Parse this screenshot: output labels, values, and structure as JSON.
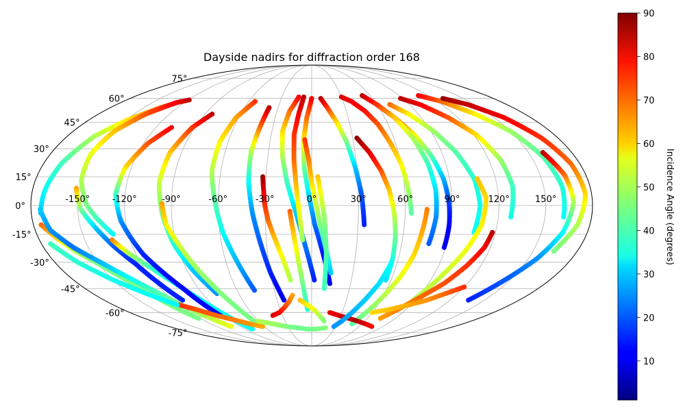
{
  "chart_data": {
    "type": "scatter",
    "projection": "mollweide",
    "title": "Dayside nadirs for diffraction order 168",
    "xlabel": "",
    "ylabel": "",
    "xlim": [
      -180,
      180
    ],
    "ylim": [
      -90,
      90
    ],
    "grid": true,
    "x_ticks": [
      -150,
      -120,
      -90,
      -60,
      -30,
      0,
      30,
      60,
      90,
      120,
      150
    ],
    "x_tick_labels": [
      "-150°",
      "-120°",
      "-90°",
      "-60°",
      "-30°",
      "0°",
      "30°",
      "60°",
      "90°",
      "120°",
      "150°"
    ],
    "y_ticks": [
      -75,
      -60,
      -45,
      -30,
      -15,
      0,
      15,
      30,
      45,
      60,
      75
    ],
    "y_tick_labels": [
      "-75°",
      "-60°",
      "-45°",
      "-30°",
      "-15°",
      "0°",
      "15°",
      "30°",
      "45°",
      "60°",
      "75°"
    ],
    "colorbar": {
      "label": "Incidence Angle (degrees)",
      "colormap": "jet",
      "range": [
        1,
        90
      ],
      "ticks": [
        10,
        20,
        30,
        40,
        50,
        60,
        70,
        80,
        90
      ],
      "tick_labels": [
        "10",
        "20",
        "30",
        "40",
        "50",
        "60",
        "70",
        "80",
        "90"
      ]
    },
    "tracks": [
      {
        "lon": [
          -175,
          -168,
          -160,
          -150,
          -140,
          -132,
          -122
        ],
        "lat": [
          -10,
          -17,
          -24,
          -31,
          -40,
          -50,
          -64
        ],
        "inc": [
          70,
          60,
          50,
          45,
          45,
          45,
          45
        ]
      },
      {
        "lon": [
          -125,
          -135,
          -148,
          -160,
          -168,
          -172,
          -174
        ],
        "lat": [
          58,
          54,
          47,
          37,
          22,
          8,
          -4
        ],
        "inc": [
          80,
          70,
          60,
          50,
          40,
          35,
          30
        ]
      },
      {
        "lon": [
          -174,
          -170,
          -160,
          -148,
          -136,
          -124,
          -114,
          -102
        ],
        "lat": [
          -2,
          -13,
          -22,
          -30,
          -39,
          -49,
          -59,
          -70
        ],
        "inc": [
          30,
          25,
          22,
          28,
          35,
          42,
          48,
          55
        ]
      },
      {
        "lon": [
          -119,
          -128,
          -140,
          -149,
          -152,
          -150,
          -144,
          -138,
          -130
        ],
        "lat": [
          59,
          57,
          50,
          40,
          27,
          13,
          0,
          -7,
          -15
        ],
        "inc": [
          85,
          80,
          72,
          62,
          55,
          50,
          45,
          40,
          35
        ]
      },
      {
        "lon": [
          -152,
          -148,
          -140,
          -132,
          -124,
          -118,
          -112
        ],
        "lat": [
          9,
          -2,
          -12,
          -22,
          -31,
          -41,
          -52
        ],
        "inc": [
          65,
          45,
          30,
          20,
          15,
          15,
          15
        ]
      },
      {
        "lon": [
          -132,
          -125,
          -115,
          -105,
          -96,
          -88,
          -80
        ],
        "lat": [
          -18,
          -25,
          -33,
          -42,
          -52,
          -62,
          -72
        ],
        "inc": [
          68,
          50,
          40,
          35,
          35,
          35,
          35
        ]
      },
      {
        "lon": [
          -108,
          -117,
          -124,
          -126,
          -123,
          -115,
          -102,
          -94
        ],
        "lat": [
          42,
          33,
          20,
          6,
          -8,
          -26,
          -45,
          -62
        ],
        "inc": [
          80,
          72,
          60,
          40,
          25,
          15,
          12,
          12
        ]
      },
      {
        "lon": [
          -84,
          -92,
          -98,
          -99,
          -96,
          -92,
          -86,
          -78
        ],
        "lat": [
          50,
          42,
          28,
          12,
          -4,
          -20,
          -34,
          -48
        ],
        "inc": [
          85,
          75,
          62,
          52,
          45,
          38,
          30,
          25
        ]
      },
      {
        "lon": [
          -96,
          -94,
          -88,
          -82,
          -76,
          -70,
          -64
        ],
        "lat": [
          1,
          -10,
          -22,
          -34,
          -45,
          -56,
          -68
        ],
        "inc": [
          65,
          58,
          52,
          48,
          46,
          45,
          45
        ]
      },
      {
        "lon": [
          -54,
          -62,
          -66,
          -66,
          -62,
          -58,
          -52,
          -46
        ],
        "lat": [
          58,
          48,
          34,
          18,
          2,
          -14,
          -30,
          -46
        ],
        "inc": [
          75,
          65,
          58,
          50,
          42,
          35,
          28,
          20
        ]
      },
      {
        "lon": [
          -38,
          -40,
          -42,
          -41,
          -38,
          -34,
          -30,
          -24
        ],
        "lat": [
          54,
          42,
          28,
          12,
          -4,
          -20,
          -36,
          -52
        ],
        "inc": [
          85,
          70,
          50,
          35,
          25,
          20,
          15,
          10
        ]
      },
      {
        "lon": [
          -32,
          -31,
          -30,
          -28,
          -24,
          -20,
          -16
        ],
        "lat": [
          15,
          8,
          0,
          -8,
          -18,
          -28,
          -40
        ],
        "inc": [
          88,
          82,
          75,
          70,
          62,
          55,
          50
        ]
      },
      {
        "lon": [
          -13,
          -19,
          -22,
          -20,
          -16,
          -10,
          -4,
          2
        ],
        "lat": [
          61,
          52,
          40,
          26,
          12,
          -4,
          -22,
          -40
        ],
        "inc": [
          80,
          70,
          60,
          50,
          40,
          30,
          22,
          15
        ]
      },
      {
        "lon": [
          -8,
          -11,
          -13,
          -12,
          -10,
          -8,
          -6
        ],
        "lat": [
          61,
          50,
          38,
          24,
          10,
          -4,
          -18
        ],
        "inc": [
          85,
          80,
          75,
          70,
          62,
          55,
          48
        ]
      },
      {
        "lon": [
          0,
          -4,
          -6,
          -5,
          -2,
          2,
          8,
          14
        ],
        "lat": [
          60,
          48,
          34,
          20,
          6,
          -10,
          -26,
          -42
        ],
        "inc": [
          80,
          70,
          58,
          45,
          32,
          22,
          14,
          10
        ]
      },
      {
        "lon": [
          -5,
          -2,
          0,
          3,
          6,
          10,
          14
        ],
        "lat": [
          35,
          24,
          12,
          0,
          -12,
          -24,
          -36
        ],
        "inc": [
          75,
          68,
          60,
          52,
          44,
          36,
          30
        ]
      },
      {
        "lon": [
          -14,
          -12,
          -10,
          -8,
          -6,
          -4
        ],
        "lat": [
          -3,
          -14,
          -25,
          -36,
          -47,
          -58
        ],
        "inc": [
          70,
          62,
          55,
          48,
          42,
          38
        ]
      },
      {
        "lon": [
          4,
          6,
          8,
          9,
          10,
          10,
          10
        ],
        "lat": [
          15,
          5,
          -5,
          -15,
          -25,
          -35,
          -45
        ],
        "inc": [
          62,
          55,
          48,
          44,
          42,
          40,
          40
        ]
      },
      {
        "lon": [
          9,
          14,
          20,
          25,
          29,
          32,
          34
        ],
        "lat": [
          60,
          54,
          45,
          34,
          20,
          6,
          -10
        ],
        "inc": [
          85,
          75,
          60,
          45,
          30,
          20,
          15
        ]
      },
      {
        "lon": [
          30,
          38,
          46,
          52,
          56,
          60,
          62,
          64
        ],
        "lat": [
          61,
          58,
          52,
          44,
          34,
          22,
          10,
          -4
        ],
        "inc": [
          82,
          80,
          78,
          72,
          65,
          58,
          50,
          42
        ]
      },
      {
        "lon": [
          60,
          68,
          76,
          82,
          86,
          88,
          89,
          89
        ],
        "lat": [
          56,
          48,
          38,
          26,
          14,
          2,
          -10,
          -22
        ],
        "inc": [
          82,
          72,
          58,
          42,
          28,
          18,
          12,
          10
        ]
      },
      {
        "lon": [
          33,
          40,
          46,
          50,
          53,
          55,
          56,
          56
        ],
        "lat": [
          36,
          28,
          18,
          8,
          -4,
          -16,
          -28,
          -40
        ],
        "inc": [
          88,
          82,
          72,
          62,
          52,
          44,
          38,
          32
        ]
      },
      {
        "lon": [
          52,
          60,
          68,
          74,
          78,
          80,
          80,
          78
        ],
        "lat": [
          62,
          56,
          48,
          36,
          22,
          8,
          -6,
          -20
        ],
        "inc": [
          85,
          75,
          62,
          50,
          40,
          32,
          25,
          20
        ]
      },
      {
        "lon": [
          72,
          82,
          92,
          100,
          106,
          108,
          106
        ],
        "lat": [
          56,
          50,
          40,
          28,
          14,
          0,
          -14
        ],
        "inc": [
          70,
          58,
          48,
          42,
          38,
          36,
          35
        ]
      },
      {
        "lon": [
          88,
          100,
          112,
          122,
          128,
          130,
          128
        ],
        "lat": [
          60,
          56,
          48,
          38,
          24,
          10,
          -6
        ],
        "inc": [
          85,
          80,
          72,
          60,
          48,
          40,
          36
        ]
      },
      {
        "lon": [
          110,
          124,
          138,
          150,
          158,
          162,
          162
        ],
        "lat": [
          62,
          58,
          50,
          40,
          26,
          10,
          -6
        ],
        "inc": [
          80,
          70,
          58,
          48,
          42,
          38,
          35
        ]
      },
      {
        "lon": [
          130,
          144,
          158,
          168,
          174,
          176,
          172,
          164
        ],
        "lat": [
          60,
          56,
          48,
          36,
          22,
          6,
          -10,
          -24
        ],
        "inc": [
          88,
          84,
          80,
          75,
          70,
          60,
          50,
          45
        ]
      },
      {
        "lon": [
          160,
          166,
          168,
          164,
          156,
          146,
          136
        ],
        "lat": [
          28,
          16,
          2,
          -14,
          -28,
          -40,
          -52
        ],
        "inc": [
          85,
          70,
          50,
          35,
          25,
          20,
          15
        ]
      },
      {
        "lon": [
          108,
          112,
          110,
          104,
          96,
          88
        ],
        "lat": [
          14,
          4,
          -10,
          -24,
          -38,
          -52
        ],
        "inc": [
          62,
          60,
          58,
          55,
          52,
          50
        ]
      },
      {
        "lon": [
          118,
          116,
          110,
          102,
          92,
          82,
          74
        ],
        "lat": [
          -14,
          -22,
          -32,
          -42,
          -50,
          -58,
          -64
        ],
        "inc": [
          85,
          80,
          75,
          72,
          70,
          68,
          65
        ]
      },
      {
        "lon": [
          74,
          72,
          70,
          66,
          60,
          54,
          48
        ],
        "lat": [
          -2,
          -14,
          -26,
          -38,
          -50,
          -60,
          -68
        ],
        "inc": [
          68,
          64,
          60,
          55,
          50,
          46,
          42
        ]
      },
      {
        "lon": [
          -120,
          -110,
          -98,
          -86,
          -74,
          -62
        ],
        "lat": [
          -55,
          -58,
          -62,
          -65,
          -68,
          -70
        ],
        "inc": [
          75,
          72,
          70,
          68,
          66,
          64
        ]
      },
      {
        "lon": [
          -40,
          -32,
          -26,
          -20,
          -16
        ],
        "lat": [
          -62,
          -60,
          -57,
          -53,
          -49
        ],
        "inc": [
          82,
          80,
          75,
          70,
          65
        ]
      },
      {
        "lon": [
          -10,
          -4,
          2,
          8,
          14
        ],
        "lat": [
          -52,
          -55,
          -58,
          -62,
          -66
        ],
        "inc": [
          62,
          58,
          55,
          50,
          46
        ]
      },
      {
        "lon": [
          18,
          28,
          40,
          52,
          64,
          76
        ],
        "lat": [
          -60,
          -62,
          -64,
          -66,
          -68,
          -70
        ],
        "inc": [
          80,
          82,
          84,
          86,
          82,
          78
        ]
      },
      {
        "lon": [
          60,
          74,
          88,
          100,
          110,
          120
        ],
        "lat": [
          -60,
          -58,
          -55,
          -52,
          -48,
          -44
        ],
        "inc": [
          60,
          62,
          64,
          66,
          70,
          75
        ]
      },
      {
        "lon": [
          -60,
          -46,
          -32,
          -18,
          -6,
          6,
          18
        ],
        "lat": [
          -66,
          -68,
          -70,
          -71,
          -72,
          -72,
          -71
        ],
        "inc": [
          50,
          48,
          46,
          44,
          44,
          45,
          46
        ]
      },
      {
        "lon": [
          -174,
          -164,
          -150,
          -136,
          -122
        ],
        "lat": [
          -20,
          -30,
          -40,
          -48,
          -55
        ],
        "inc": [
          40,
          38,
          36,
          35,
          34
        ]
      },
      {
        "lon": [
          56,
          52,
          46,
          40,
          34,
          28
        ],
        "lat": [
          -30,
          -42,
          -52,
          -60,
          -66,
          -70
        ],
        "inc": [
          35,
          32,
          30,
          28,
          26,
          25
        ]
      }
    ]
  }
}
